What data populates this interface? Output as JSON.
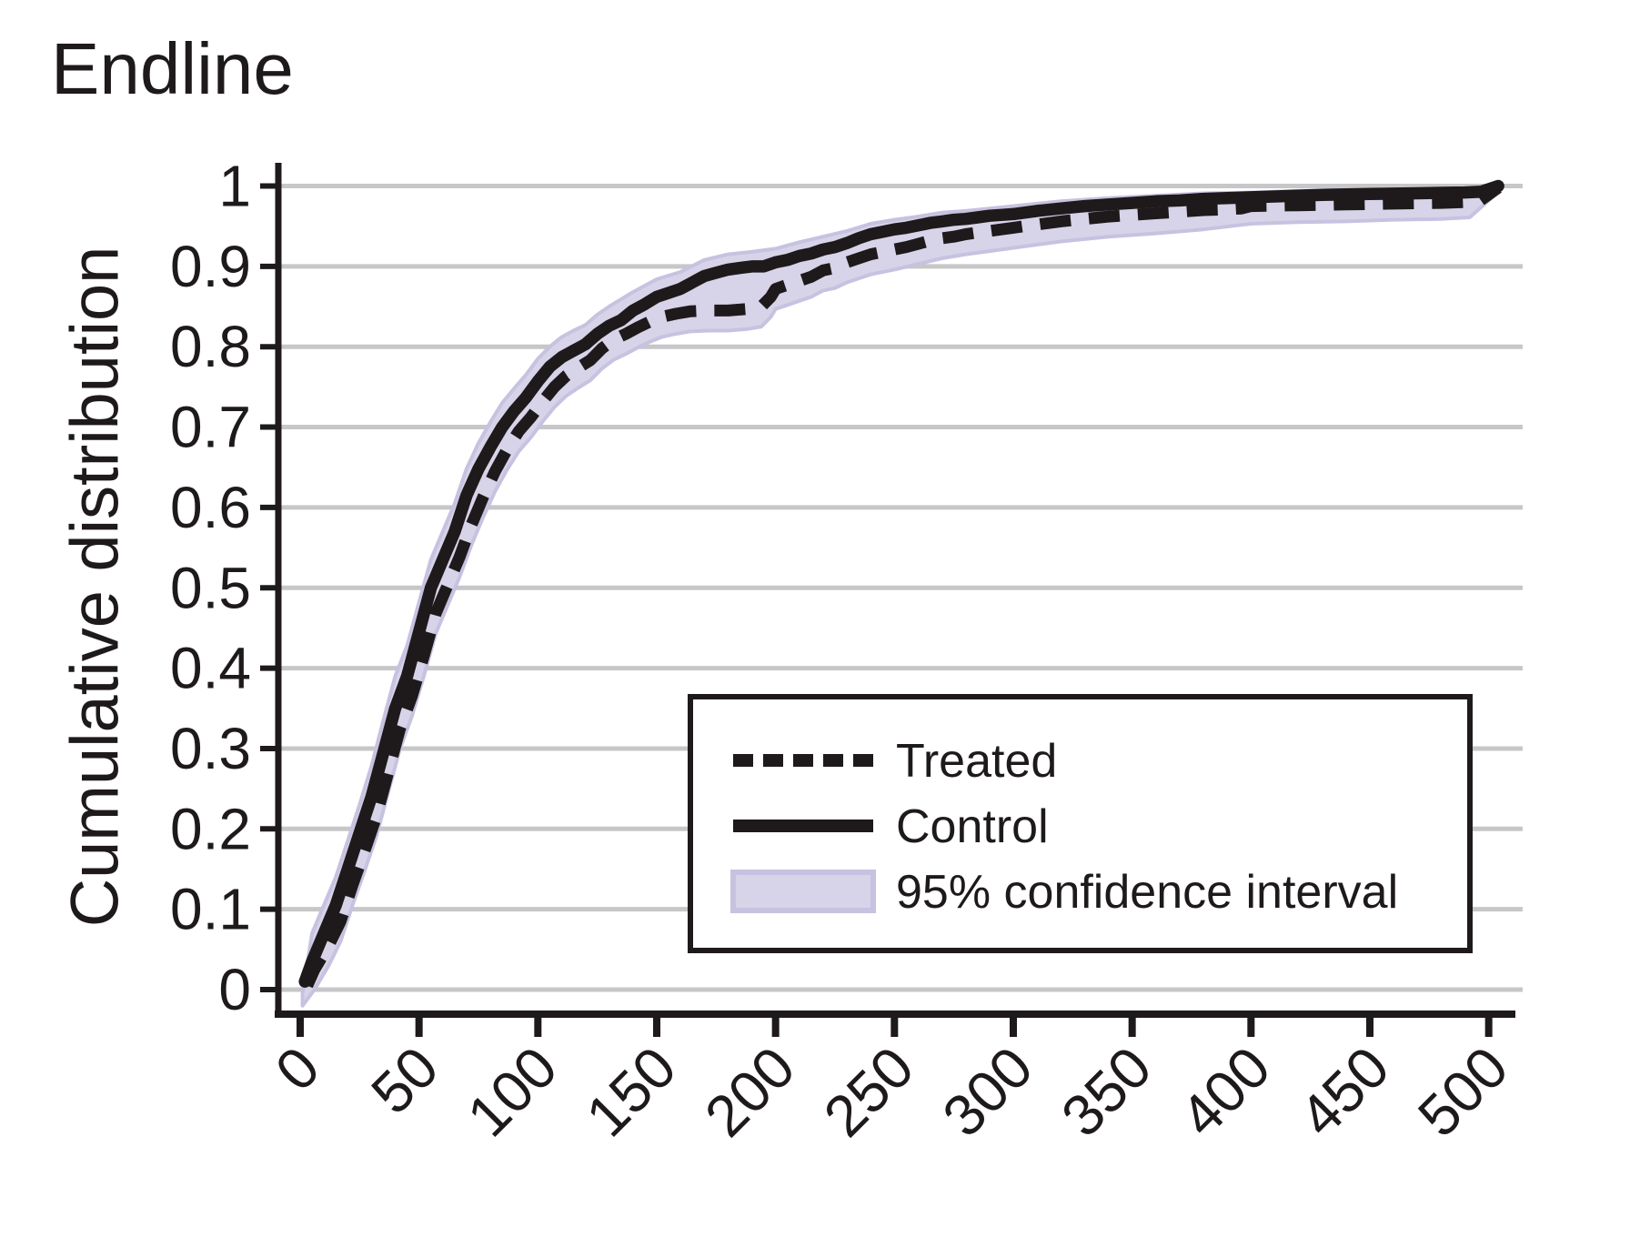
{
  "title": "Endline",
  "colors": {
    "line_black": "#1e1a1b",
    "grid_gray": "#c7c6c8",
    "band_fill": "#d7d4e9",
    "band_edge": "#c7c2e0",
    "background": "#ffffff"
  },
  "chart_data": {
    "type": "line",
    "title": "Endline",
    "xlabel": "",
    "ylabel": "Cumulative distribution",
    "xlim": [
      0,
      515
    ],
    "ylim": [
      0,
      1
    ],
    "grid": "horizontal",
    "x_ticks": [
      {
        "v": 0,
        "label": "0"
      },
      {
        "v": 50,
        "label": "50"
      },
      {
        "v": 100,
        "label": "100"
      },
      {
        "v": 150,
        "label": "150"
      },
      {
        "v": 200,
        "label": "200"
      },
      {
        "v": 250,
        "label": "250"
      },
      {
        "v": 300,
        "label": "300"
      },
      {
        "v": 350,
        "label": "350"
      },
      {
        "v": 400,
        "label": "400"
      },
      {
        "v": 450,
        "label": "450"
      },
      {
        "v": 500,
        "label": "500"
      }
    ],
    "y_ticks": [
      {
        "v": 0,
        "label": "0"
      },
      {
        "v": 0.1,
        "label": "0.1"
      },
      {
        "v": 0.2,
        "label": "0.2"
      },
      {
        "v": 0.3,
        "label": "0.3"
      },
      {
        "v": 0.4,
        "label": "0.4"
      },
      {
        "v": 0.5,
        "label": "0.5"
      },
      {
        "v": 0.6,
        "label": "0.6"
      },
      {
        "v": 0.7,
        "label": "0.7"
      },
      {
        "v": 0.8,
        "label": "0.8"
      },
      {
        "v": 0.9,
        "label": "0.9"
      },
      {
        "v": 1,
        "label": "1"
      }
    ],
    "legend": {
      "position": "inside lower-right",
      "entries": [
        {
          "label": "Treated",
          "swatch": "dashed-line"
        },
        {
          "label": "Control",
          "swatch": "solid-line"
        },
        {
          "label": "95% confidence interval",
          "swatch": "filled-band"
        }
      ]
    },
    "series": [
      {
        "name": "Control",
        "style": "solid",
        "color": "#1e1a1b",
        "points": [
          [
            2,
            0.01
          ],
          [
            5,
            0.035
          ],
          [
            10,
            0.07
          ],
          [
            15,
            0.105
          ],
          [
            20,
            0.15
          ],
          [
            25,
            0.195
          ],
          [
            30,
            0.24
          ],
          [
            35,
            0.295
          ],
          [
            40,
            0.35
          ],
          [
            45,
            0.39
          ],
          [
            50,
            0.445
          ],
          [
            55,
            0.5
          ],
          [
            60,
            0.535
          ],
          [
            65,
            0.57
          ],
          [
            70,
            0.615
          ],
          [
            75,
            0.648
          ],
          [
            80,
            0.675
          ],
          [
            85,
            0.7
          ],
          [
            90,
            0.72
          ],
          [
            95,
            0.737
          ],
          [
            100,
            0.757
          ],
          [
            105,
            0.775
          ],
          [
            110,
            0.787
          ],
          [
            115,
            0.795
          ],
          [
            120,
            0.803
          ],
          [
            125,
            0.816
          ],
          [
            130,
            0.826
          ],
          [
            135,
            0.833
          ],
          [
            140,
            0.845
          ],
          [
            145,
            0.853
          ],
          [
            150,
            0.862
          ],
          [
            155,
            0.867
          ],
          [
            160,
            0.872
          ],
          [
            165,
            0.88
          ],
          [
            170,
            0.888
          ],
          [
            175,
            0.892
          ],
          [
            180,
            0.896
          ],
          [
            185,
            0.898
          ],
          [
            190,
            0.9
          ],
          [
            195,
            0.9
          ],
          [
            200,
            0.905
          ],
          [
            205,
            0.908
          ],
          [
            210,
            0.913
          ],
          [
            215,
            0.916
          ],
          [
            220,
            0.921
          ],
          [
            225,
            0.924
          ],
          [
            230,
            0.929
          ],
          [
            235,
            0.935
          ],
          [
            240,
            0.94
          ],
          [
            245,
            0.943
          ],
          [
            250,
            0.946
          ],
          [
            255,
            0.948
          ],
          [
            260,
            0.951
          ],
          [
            265,
            0.954
          ],
          [
            270,
            0.956
          ],
          [
            275,
            0.958
          ],
          [
            280,
            0.959
          ],
          [
            285,
            0.961
          ],
          [
            290,
            0.963
          ],
          [
            295,
            0.964
          ],
          [
            300,
            0.965
          ],
          [
            310,
            0.969
          ],
          [
            320,
            0.972
          ],
          [
            330,
            0.975
          ],
          [
            340,
            0.977
          ],
          [
            350,
            0.979
          ],
          [
            360,
            0.981
          ],
          [
            370,
            0.982
          ],
          [
            380,
            0.984
          ],
          [
            390,
            0.985
          ],
          [
            400,
            0.986
          ],
          [
            410,
            0.987
          ],
          [
            420,
            0.988
          ],
          [
            430,
            0.989
          ],
          [
            440,
            0.9895
          ],
          [
            450,
            0.99
          ],
          [
            460,
            0.9905
          ],
          [
            470,
            0.991
          ],
          [
            480,
            0.9915
          ],
          [
            490,
            0.992
          ],
          [
            497,
            0.993
          ],
          [
            504,
            1.0
          ]
        ]
      },
      {
        "name": "Treated",
        "style": "dashed",
        "color": "#1e1a1b",
        "points": [
          [
            3,
            0.005
          ],
          [
            6,
            0.025
          ],
          [
            12,
            0.055
          ],
          [
            17,
            0.085
          ],
          [
            22,
            0.13
          ],
          [
            27,
            0.172
          ],
          [
            32,
            0.215
          ],
          [
            37,
            0.27
          ],
          [
            42,
            0.325
          ],
          [
            47,
            0.365
          ],
          [
            52,
            0.415
          ],
          [
            57,
            0.468
          ],
          [
            62,
            0.503
          ],
          [
            67,
            0.538
          ],
          [
            72,
            0.578
          ],
          [
            77,
            0.613
          ],
          [
            82,
            0.645
          ],
          [
            87,
            0.672
          ],
          [
            92,
            0.695
          ],
          [
            97,
            0.712
          ],
          [
            102,
            0.732
          ],
          [
            107,
            0.75
          ],
          [
            112,
            0.764
          ],
          [
            117,
            0.774
          ],
          [
            122,
            0.783
          ],
          [
            127,
            0.798
          ],
          [
            132,
            0.809
          ],
          [
            137,
            0.816
          ],
          [
            142,
            0.824
          ],
          [
            147,
            0.831
          ],
          [
            152,
            0.837
          ],
          [
            158,
            0.841
          ],
          [
            164,
            0.844
          ],
          [
            172,
            0.845
          ],
          [
            180,
            0.845
          ],
          [
            188,
            0.847
          ],
          [
            194,
            0.85
          ],
          [
            198,
            0.862
          ],
          [
            200,
            0.872
          ],
          [
            205,
            0.877
          ],
          [
            210,
            0.882
          ],
          [
            215,
            0.887
          ],
          [
            220,
            0.895
          ],
          [
            225,
            0.898
          ],
          [
            230,
            0.905
          ],
          [
            235,
            0.91
          ],
          [
            240,
            0.915
          ],
          [
            245,
            0.918
          ],
          [
            250,
            0.921
          ],
          [
            255,
            0.924
          ],
          [
            260,
            0.928
          ],
          [
            265,
            0.932
          ],
          [
            270,
            0.935
          ],
          [
            275,
            0.937
          ],
          [
            280,
            0.94
          ],
          [
            285,
            0.942
          ],
          [
            290,
            0.944
          ],
          [
            295,
            0.946
          ],
          [
            300,
            0.948
          ],
          [
            310,
            0.952
          ],
          [
            320,
            0.956
          ],
          [
            330,
            0.959
          ],
          [
            340,
            0.962
          ],
          [
            350,
            0.964
          ],
          [
            360,
            0.966
          ],
          [
            370,
            0.968
          ],
          [
            380,
            0.97
          ],
          [
            390,
            0.971
          ],
          [
            396,
            0.972
          ],
          [
            400,
            0.975
          ],
          [
            410,
            0.9755
          ],
          [
            420,
            0.976
          ],
          [
            430,
            0.9765
          ],
          [
            440,
            0.977
          ],
          [
            450,
            0.9775
          ],
          [
            460,
            0.978
          ],
          [
            470,
            0.9785
          ],
          [
            480,
            0.979
          ],
          [
            490,
            0.98
          ],
          [
            496,
            0.981
          ],
          [
            504,
            0.998
          ]
        ]
      }
    ],
    "confidence_band": {
      "label": "95% confidence interval",
      "fill": "#d7d4e9",
      "edge": "#c7c2e0",
      "upper": [
        [
          1,
          -0.005
        ],
        [
          5,
          0.07
        ],
        [
          10,
          0.105
        ],
        [
          15,
          0.14
        ],
        [
          20,
          0.185
        ],
        [
          25,
          0.23
        ],
        [
          30,
          0.278
        ],
        [
          35,
          0.335
        ],
        [
          40,
          0.39
        ],
        [
          45,
          0.428
        ],
        [
          50,
          0.482
        ],
        [
          55,
          0.535
        ],
        [
          60,
          0.57
        ],
        [
          65,
          0.605
        ],
        [
          70,
          0.648
        ],
        [
          75,
          0.68
        ],
        [
          80,
          0.706
        ],
        [
          85,
          0.73
        ],
        [
          90,
          0.748
        ],
        [
          95,
          0.765
        ],
        [
          100,
          0.785
        ],
        [
          105,
          0.8
        ],
        [
          110,
          0.812
        ],
        [
          115,
          0.82
        ],
        [
          120,
          0.827
        ],
        [
          125,
          0.84
        ],
        [
          130,
          0.85
        ],
        [
          140,
          0.868
        ],
        [
          150,
          0.884
        ],
        [
          160,
          0.893
        ],
        [
          170,
          0.908
        ],
        [
          180,
          0.915
        ],
        [
          190,
          0.918
        ],
        [
          200,
          0.922
        ],
        [
          210,
          0.93
        ],
        [
          220,
          0.937
        ],
        [
          230,
          0.944
        ],
        [
          240,
          0.953
        ],
        [
          250,
          0.958
        ],
        [
          260,
          0.962
        ],
        [
          270,
          0.967
        ],
        [
          280,
          0.969
        ],
        [
          290,
          0.972
        ],
        [
          300,
          0.975
        ],
        [
          310,
          0.978
        ],
        [
          320,
          0.981
        ],
        [
          340,
          0.985
        ],
        [
          360,
          0.988
        ],
        [
          380,
          0.991
        ],
        [
          400,
          0.992
        ],
        [
          420,
          0.994
        ],
        [
          440,
          0.995
        ],
        [
          460,
          0.996
        ],
        [
          480,
          0.9965
        ],
        [
          495,
          0.997
        ],
        [
          505,
          1.003
        ]
      ],
      "lower": [
        [
          1,
          -0.02
        ],
        [
          6,
          0.0
        ],
        [
          12,
          0.03
        ],
        [
          17,
          0.06
        ],
        [
          22,
          0.105
        ],
        [
          27,
          0.147
        ],
        [
          32,
          0.19
        ],
        [
          37,
          0.245
        ],
        [
          42,
          0.3
        ],
        [
          47,
          0.34
        ],
        [
          52,
          0.39
        ],
        [
          57,
          0.443
        ],
        [
          62,
          0.478
        ],
        [
          67,
          0.513
        ],
        [
          72,
          0.553
        ],
        [
          77,
          0.588
        ],
        [
          82,
          0.62
        ],
        [
          87,
          0.647
        ],
        [
          92,
          0.67
        ],
        [
          97,
          0.687
        ],
        [
          102,
          0.707
        ],
        [
          107,
          0.725
        ],
        [
          112,
          0.739
        ],
        [
          117,
          0.749
        ],
        [
          122,
          0.758
        ],
        [
          127,
          0.773
        ],
        [
          132,
          0.784
        ],
        [
          137,
          0.791
        ],
        [
          142,
          0.799
        ],
        [
          147,
          0.806
        ],
        [
          152,
          0.812
        ],
        [
          158,
          0.816
        ],
        [
          164,
          0.819
        ],
        [
          172,
          0.82
        ],
        [
          180,
          0.82
        ],
        [
          188,
          0.822
        ],
        [
          194,
          0.825
        ],
        [
          198,
          0.837
        ],
        [
          200,
          0.847
        ],
        [
          205,
          0.852
        ],
        [
          210,
          0.857
        ],
        [
          215,
          0.862
        ],
        [
          220,
          0.87
        ],
        [
          225,
          0.873
        ],
        [
          230,
          0.88
        ],
        [
          235,
          0.885
        ],
        [
          240,
          0.89
        ],
        [
          250,
          0.896
        ],
        [
          260,
          0.903
        ],
        [
          270,
          0.91
        ],
        [
          280,
          0.915
        ],
        [
          290,
          0.919
        ],
        [
          300,
          0.923
        ],
        [
          310,
          0.927
        ],
        [
          320,
          0.931
        ],
        [
          340,
          0.937
        ],
        [
          360,
          0.941
        ],
        [
          380,
          0.946
        ],
        [
          400,
          0.953
        ],
        [
          420,
          0.955
        ],
        [
          440,
          0.956
        ],
        [
          460,
          0.958
        ],
        [
          480,
          0.959
        ],
        [
          492,
          0.961
        ],
        [
          505,
          0.995
        ]
      ]
    }
  }
}
